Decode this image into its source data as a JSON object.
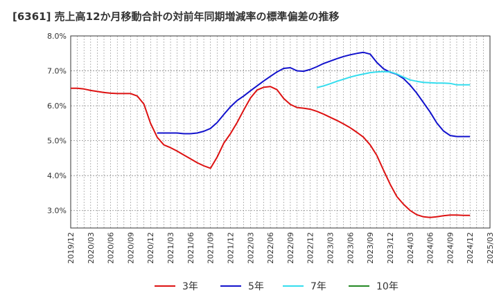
{
  "chart_data": {
    "type": "line",
    "title": "[6361]  売上高12か月移動合計の対前年同期増減率の標準偏差の推移",
    "xlabel": "",
    "ylabel": "",
    "ylim": [
      2.5,
      8.0
    ],
    "yticks": [
      3.0,
      4.0,
      5.0,
      6.0,
      7.0,
      8.0
    ],
    "ytick_labels": [
      "3.0%",
      "4.0%",
      "5.0%",
      "6.0%",
      "7.0%",
      "8.0%"
    ],
    "xticks": [
      "2019/12",
      "2020/03",
      "2020/06",
      "2020/09",
      "2020/12",
      "2021/03",
      "2021/06",
      "2021/09",
      "2021/12",
      "2022/03",
      "2022/06",
      "2022/09",
      "2022/12",
      "2023/03",
      "2023/06",
      "2023/09",
      "2023/12",
      "2024/03",
      "2024/06",
      "2024/09",
      "2024/12",
      "2025/03"
    ],
    "grid": true,
    "legend_position": "bottom",
    "series": [
      {
        "name": "3年",
        "color": "#dd1111",
        "x": [
          "2019/12",
          "2020/01",
          "2020/02",
          "2020/03",
          "2020/04",
          "2020/05",
          "2020/06",
          "2020/07",
          "2020/08",
          "2020/09",
          "2020/10",
          "2020/11",
          "2020/12",
          "2021/01",
          "2021/02",
          "2021/03",
          "2021/04",
          "2021/05",
          "2021/06",
          "2021/07",
          "2021/08",
          "2021/09",
          "2021/10",
          "2021/11",
          "2021/12",
          "2022/01",
          "2022/02",
          "2022/03",
          "2022/04",
          "2022/05",
          "2022/06",
          "2022/07",
          "2022/08",
          "2022/09",
          "2022/10",
          "2022/11",
          "2022/12",
          "2023/01",
          "2023/02",
          "2023/03",
          "2023/04",
          "2023/05",
          "2023/06",
          "2023/07",
          "2023/08",
          "2023/09",
          "2023/10",
          "2023/11",
          "2023/12",
          "2024/01",
          "2024/02",
          "2024/03",
          "2024/04",
          "2024/05",
          "2024/06",
          "2024/07",
          "2024/08",
          "2024/09",
          "2024/10",
          "2024/11",
          "2024/12"
        ],
        "values": [
          6.5,
          6.5,
          6.48,
          6.44,
          6.41,
          6.38,
          6.36,
          6.35,
          6.35,
          6.35,
          6.28,
          6.05,
          5.5,
          5.1,
          4.88,
          4.8,
          4.7,
          4.59,
          4.48,
          4.37,
          4.28,
          4.21,
          4.53,
          4.93,
          5.2,
          5.52,
          5.88,
          6.22,
          6.45,
          6.53,
          6.55,
          6.46,
          6.21,
          6.04,
          5.95,
          5.93,
          5.9,
          5.84,
          5.76,
          5.67,
          5.58,
          5.48,
          5.37,
          5.24,
          5.1,
          4.88,
          4.58,
          4.16,
          3.75,
          3.4,
          3.18,
          3.0,
          2.88,
          2.82,
          2.8,
          2.82,
          2.85,
          2.87,
          2.87,
          2.86,
          2.86
        ]
      },
      {
        "name": "5年",
        "color": "#1111cc",
        "x": [
          "2021/01",
          "2021/02",
          "2021/03",
          "2021/04",
          "2021/05",
          "2021/06",
          "2021/07",
          "2021/08",
          "2021/09",
          "2021/10",
          "2021/11",
          "2021/12",
          "2022/01",
          "2022/02",
          "2022/03",
          "2022/04",
          "2022/05",
          "2022/06",
          "2022/07",
          "2022/08",
          "2022/09",
          "2022/10",
          "2022/11",
          "2022/12",
          "2023/01",
          "2023/02",
          "2023/03",
          "2023/04",
          "2023/05",
          "2023/06",
          "2023/07",
          "2023/08",
          "2023/09",
          "2023/10",
          "2023/11",
          "2023/12",
          "2024/01",
          "2024/02",
          "2024/03",
          "2024/04",
          "2024/05",
          "2024/06",
          "2024/07",
          "2024/08",
          "2024/09",
          "2024/10",
          "2024/11",
          "2024/12"
        ],
        "values": [
          5.22,
          5.22,
          5.22,
          5.22,
          5.2,
          5.2,
          5.22,
          5.27,
          5.35,
          5.52,
          5.75,
          5.97,
          6.15,
          6.28,
          6.43,
          6.57,
          6.71,
          6.84,
          6.97,
          7.07,
          7.09,
          7.0,
          6.99,
          7.04,
          7.12,
          7.21,
          7.28,
          7.35,
          7.41,
          7.46,
          7.5,
          7.53,
          7.48,
          7.24,
          7.06,
          6.96,
          6.9,
          6.78,
          6.59,
          6.36,
          6.09,
          5.82,
          5.51,
          5.28,
          5.15,
          5.12,
          5.12,
          5.12
        ]
      },
      {
        "name": "7年",
        "color": "#33ddee",
        "x": [
          "2023/01",
          "2023/02",
          "2023/03",
          "2023/04",
          "2023/05",
          "2023/06",
          "2023/07",
          "2023/08",
          "2023/09",
          "2023/10",
          "2023/11",
          "2023/12",
          "2024/01",
          "2024/02",
          "2024/03",
          "2024/04",
          "2024/05",
          "2024/06",
          "2024/07",
          "2024/08",
          "2024/09",
          "2024/10",
          "2024/11",
          "2024/12"
        ],
        "values": [
          6.52,
          6.57,
          6.63,
          6.7,
          6.76,
          6.82,
          6.87,
          6.91,
          6.95,
          6.97,
          6.98,
          6.97,
          6.91,
          6.82,
          6.74,
          6.7,
          6.67,
          6.66,
          6.65,
          6.65,
          6.64,
          6.6,
          6.6,
          6.6
        ]
      },
      {
        "name": "10年",
        "color": "#228822",
        "x": [],
        "values": []
      }
    ]
  }
}
